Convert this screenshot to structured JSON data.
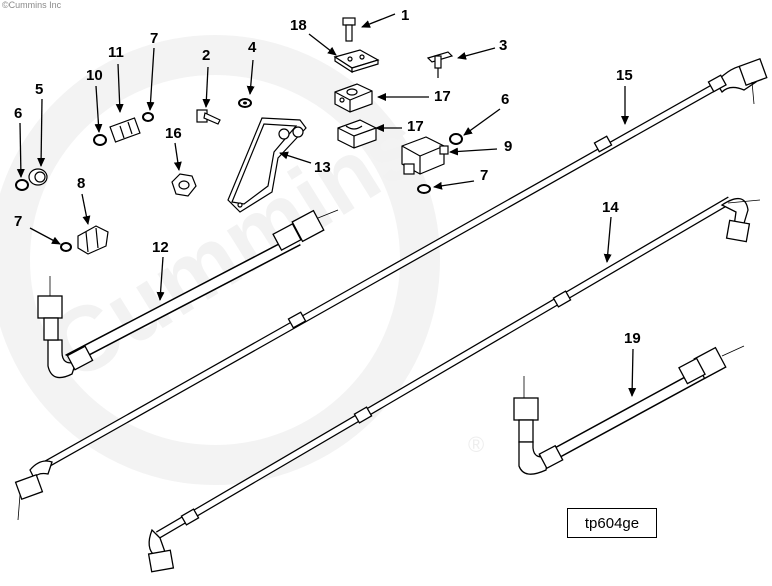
{
  "copyright": "©Cummins Inc",
  "reference_code": "tp604ge",
  "watermark": "Cummins",
  "registered_mark": "®",
  "callouts": [
    {
      "id": "c1",
      "label": "1"
    },
    {
      "id": "c2",
      "label": "2"
    },
    {
      "id": "c3",
      "label": "3"
    },
    {
      "id": "c4",
      "label": "4"
    },
    {
      "id": "c5",
      "label": "5"
    },
    {
      "id": "c6a",
      "label": "6"
    },
    {
      "id": "c6b",
      "label": "6"
    },
    {
      "id": "c7a",
      "label": "7"
    },
    {
      "id": "c7b",
      "label": "7"
    },
    {
      "id": "c7c",
      "label": "7"
    },
    {
      "id": "c8",
      "label": "8"
    },
    {
      "id": "c9",
      "label": "9"
    },
    {
      "id": "c10",
      "label": "10"
    },
    {
      "id": "c11",
      "label": "11"
    },
    {
      "id": "c12",
      "label": "12"
    },
    {
      "id": "c13",
      "label": "13"
    },
    {
      "id": "c14",
      "label": "14"
    },
    {
      "id": "c15",
      "label": "15"
    },
    {
      "id": "c16",
      "label": "16"
    },
    {
      "id": "c17a",
      "label": "17"
    },
    {
      "id": "c17b",
      "label": "17"
    },
    {
      "id": "c18",
      "label": "18"
    },
    {
      "id": "c19",
      "label": "19"
    }
  ]
}
